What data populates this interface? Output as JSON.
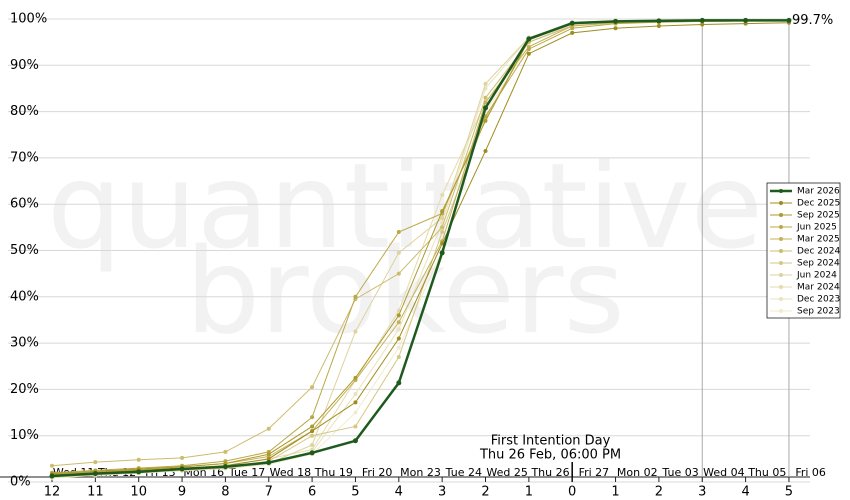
{
  "chart_data": {
    "type": "line",
    "watermark": [
      "quantitative",
      "brokers"
    ],
    "annotation": [
      "First Intention Day",
      "Thu 26 Feb, 06:00 PM"
    ],
    "categories": [
      "12",
      "11",
      "10",
      "9",
      "8",
      "7",
      "6",
      "5",
      "4",
      "3",
      "2",
      "1",
      "0",
      "1",
      "2",
      "3",
      "4",
      "5"
    ],
    "date_labels": [
      "Wed 11",
      "Thu 12",
      "Fri 13",
      "Mon 16",
      "Tue 17",
      "Wed 18",
      "Thu 19",
      "Fri 20",
      "Mon 23",
      "Tue 24",
      "Wed 25",
      "Thu 26",
      "Fri 27",
      "Mon 02",
      "Tue 03",
      "Wed 04",
      "Thu 05",
      "Fri 06"
    ],
    "ylim": [
      0,
      100
    ],
    "yticks": [
      {
        "value": 0,
        "label": "0%"
      },
      {
        "value": 10,
        "label": "10%"
      },
      {
        "value": 20,
        "label": "20%"
      },
      {
        "value": 30,
        "label": "30%"
      },
      {
        "value": 40,
        "label": "40%"
      },
      {
        "value": 50,
        "label": "50%"
      },
      {
        "value": 60,
        "label": "60%"
      },
      {
        "value": 70,
        "label": "70%"
      },
      {
        "value": 80,
        "label": "80%"
      },
      {
        "value": 90,
        "label": "90%"
      },
      {
        "value": 100,
        "label": "100%"
      }
    ],
    "grid": true,
    "legend": "right",
    "series": [
      {
        "name": "Mar 2026",
        "color": "#1e5a1e",
        "values": [
          1.3,
          1.8,
          2.2,
          2.8,
          3.3,
          4.2,
          6.3,
          8.9,
          21.4,
          49.5,
          80.8,
          95.7,
          99.1,
          99.5,
          99.6,
          99.7,
          99.7,
          99.7
        ],
        "value_labels": [
          null,
          null,
          null,
          null,
          null,
          null,
          null,
          null,
          null,
          null,
          null,
          null,
          null,
          null,
          null,
          null,
          null,
          "99.7%"
        ]
      },
      {
        "name": "Dec 2025",
        "color": "#a08c1e",
        "values": [
          1.5,
          2,
          2.5,
          3,
          3.5,
          5,
          11,
          17.2,
          31,
          51.5,
          71.5,
          92.5,
          97,
          98,
          98.5,
          98.8,
          99,
          99.2
        ]
      },
      {
        "name": "Sep 2025",
        "color": "#ad9a2c",
        "values": [
          1.8,
          2.3,
          2.8,
          3.3,
          4,
          6,
          12,
          22.5,
          36,
          58.5,
          78,
          95.5,
          99,
          99.3,
          99.5,
          99.6,
          99.7,
          99.7
        ]
      },
      {
        "name": "Jun 2025",
        "color": "#bba846",
        "values": [
          2,
          2.5,
          3,
          3.5,
          4.5,
          6.5,
          14,
          40,
          54,
          58,
          79,
          93.5,
          98,
          99,
          99.3,
          99.5,
          99.6,
          99.7
        ]
      },
      {
        "name": "Mar 2025",
        "color": "#c4b25a",
        "values": [
          1.6,
          2.2,
          2.7,
          3.2,
          4,
          5.5,
          11,
          22,
          34.5,
          52,
          82,
          94,
          98.5,
          99.2,
          99.4,
          99.5,
          99.6,
          99.7
        ]
      },
      {
        "name": "Dec 2024",
        "color": "#ccbc6c",
        "values": [
          3.5,
          4.3,
          4.8,
          5.2,
          6.5,
          11.5,
          20.5,
          39.5,
          45,
          55,
          83,
          95,
          98.5,
          99.2,
          99.4,
          99.5,
          99.6,
          99.7
        ]
      },
      {
        "name": "Sep 2024",
        "color": "#d5c784",
        "values": [
          1.2,
          1.7,
          2.2,
          2.7,
          3.2,
          4.5,
          10,
          12,
          27,
          54,
          78.5,
          95.5,
          99,
          99.3,
          99.5,
          99.6,
          99.7,
          99.7
        ]
      },
      {
        "name": "Jun 2024",
        "color": "#ddd39c",
        "values": [
          1,
          1.5,
          2,
          2.5,
          3,
          4,
          8,
          32.5,
          49.5,
          57,
          86,
          96,
          99,
          99.3,
          99.5,
          99.6,
          99.7,
          99.7
        ]
      },
      {
        "name": "Mar 2024",
        "color": "#e4dbac",
        "values": [
          1.4,
          1.9,
          2.4,
          2.9,
          3.6,
          5,
          7,
          22,
          37,
          62,
          82,
          95,
          98.8,
          99.2,
          99.4,
          99.5,
          99.6,
          99.7
        ]
      },
      {
        "name": "Dec 2023",
        "color": "#eae3bc",
        "values": [
          1.1,
          1.6,
          2.1,
          2.6,
          3.1,
          4.2,
          6.5,
          19,
          33,
          56,
          85,
          96,
          99,
          99.3,
          99.5,
          99.6,
          99.7,
          99.7
        ]
      },
      {
        "name": "Sep 2023",
        "color": "#f0ebcf",
        "values": [
          0.9,
          1.4,
          1.9,
          2.4,
          2.9,
          3.8,
          6,
          15,
          29,
          50,
          80,
          94,
          98.6,
          99.1,
          99.4,
          99.5,
          99.6,
          99.7
        ]
      }
    ]
  }
}
